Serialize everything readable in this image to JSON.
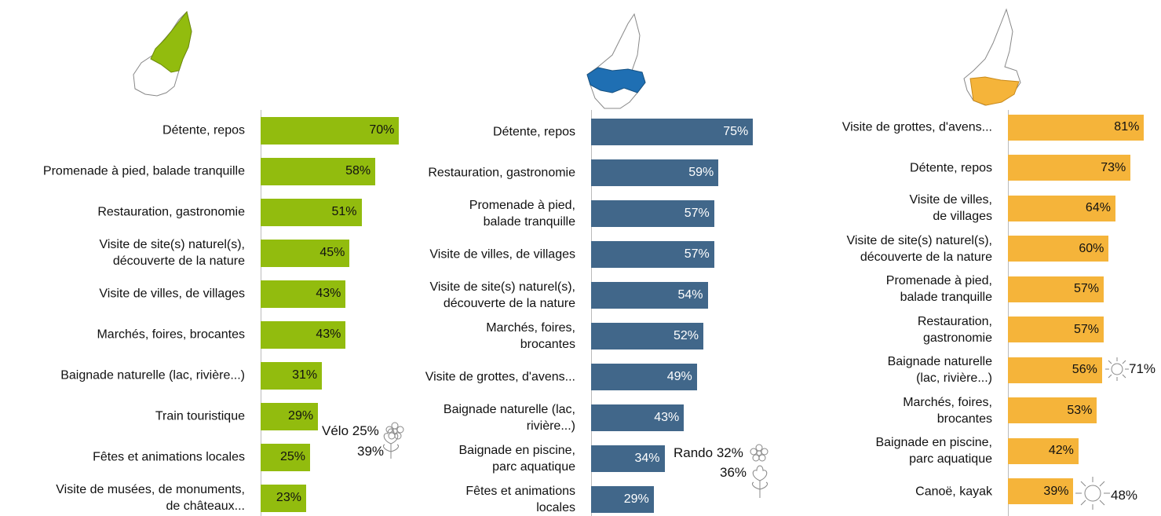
{
  "chart_data": [
    {
      "type": "bar",
      "orientation": "horizontal",
      "color": "#92bc0e",
      "categories": [
        "Détente, repos",
        "Promenade à pied, balade tranquille",
        "Restauration, gastronomie",
        "Visite de site(s) naturel(s),\ndécouverte de la nature",
        "Visite de villes, de villages",
        "Marchés, foires, brocantes",
        "Baignade naturelle (lac, rivière...)",
        "Train touristique",
        "Fêtes et animations locales",
        "Visite de musées, de monuments,\nde châteaux..."
      ],
      "values": [
        70,
        58,
        51,
        45,
        43,
        43,
        31,
        29,
        25,
        23
      ],
      "value_labels": [
        "70%",
        "58%",
        "51%",
        "45%",
        "43%",
        "43%",
        "31%",
        "29%",
        "25%",
        "23%"
      ],
      "annotations": [
        "Vélo 25%",
        "39%"
      ]
    },
    {
      "type": "bar",
      "orientation": "horizontal",
      "color": "#41678a",
      "categories": [
        "Détente, repos",
        "Restauration, gastronomie",
        "Promenade à pied,\nbalade tranquille",
        "Visite de villes, de villages",
        "Visite de site(s) naturel(s),\ndécouverte de la nature",
        "Marchés, foires,\nbrocantes",
        "Visite de grottes, d'avens...",
        "Baignade naturelle (lac,\nrivière...)",
        "Baignade en piscine,\nparc aquatique",
        "Fêtes et animations\nlocales"
      ],
      "values": [
        75,
        59,
        57,
        57,
        54,
        52,
        49,
        43,
        34,
        29
      ],
      "value_labels": [
        "75%",
        "59%",
        "57%",
        "57%",
        "54%",
        "52%",
        "49%",
        "43%",
        "34%",
        "29%"
      ],
      "annotations": [
        "Rando 32%",
        "36%"
      ]
    },
    {
      "type": "bar",
      "orientation": "horizontal",
      "color": "#f5b43a",
      "categories": [
        "Visite de grottes, d'avens...",
        "Détente, repos",
        "Visite de villes,\nde villages",
        "Visite de site(s) naturel(s),\ndécouverte de la nature",
        "Promenade à pied,\nbalade tranquille",
        "Restauration,\ngastronomie",
        "Baignade naturelle\n(lac, rivière...)",
        "Marchés, foires,\nbrocantes",
        "Baignade en piscine,\nparc aquatique",
        "Canoë, kayak"
      ],
      "values": [
        81,
        73,
        64,
        60,
        57,
        57,
        56,
        53,
        42,
        39
      ],
      "value_labels": [
        "81%",
        "73%",
        "64%",
        "60%",
        "57%",
        "57%",
        "56%",
        "53%",
        "42%",
        "39%"
      ],
      "annotations": [
        "71%",
        "48%"
      ]
    }
  ]
}
